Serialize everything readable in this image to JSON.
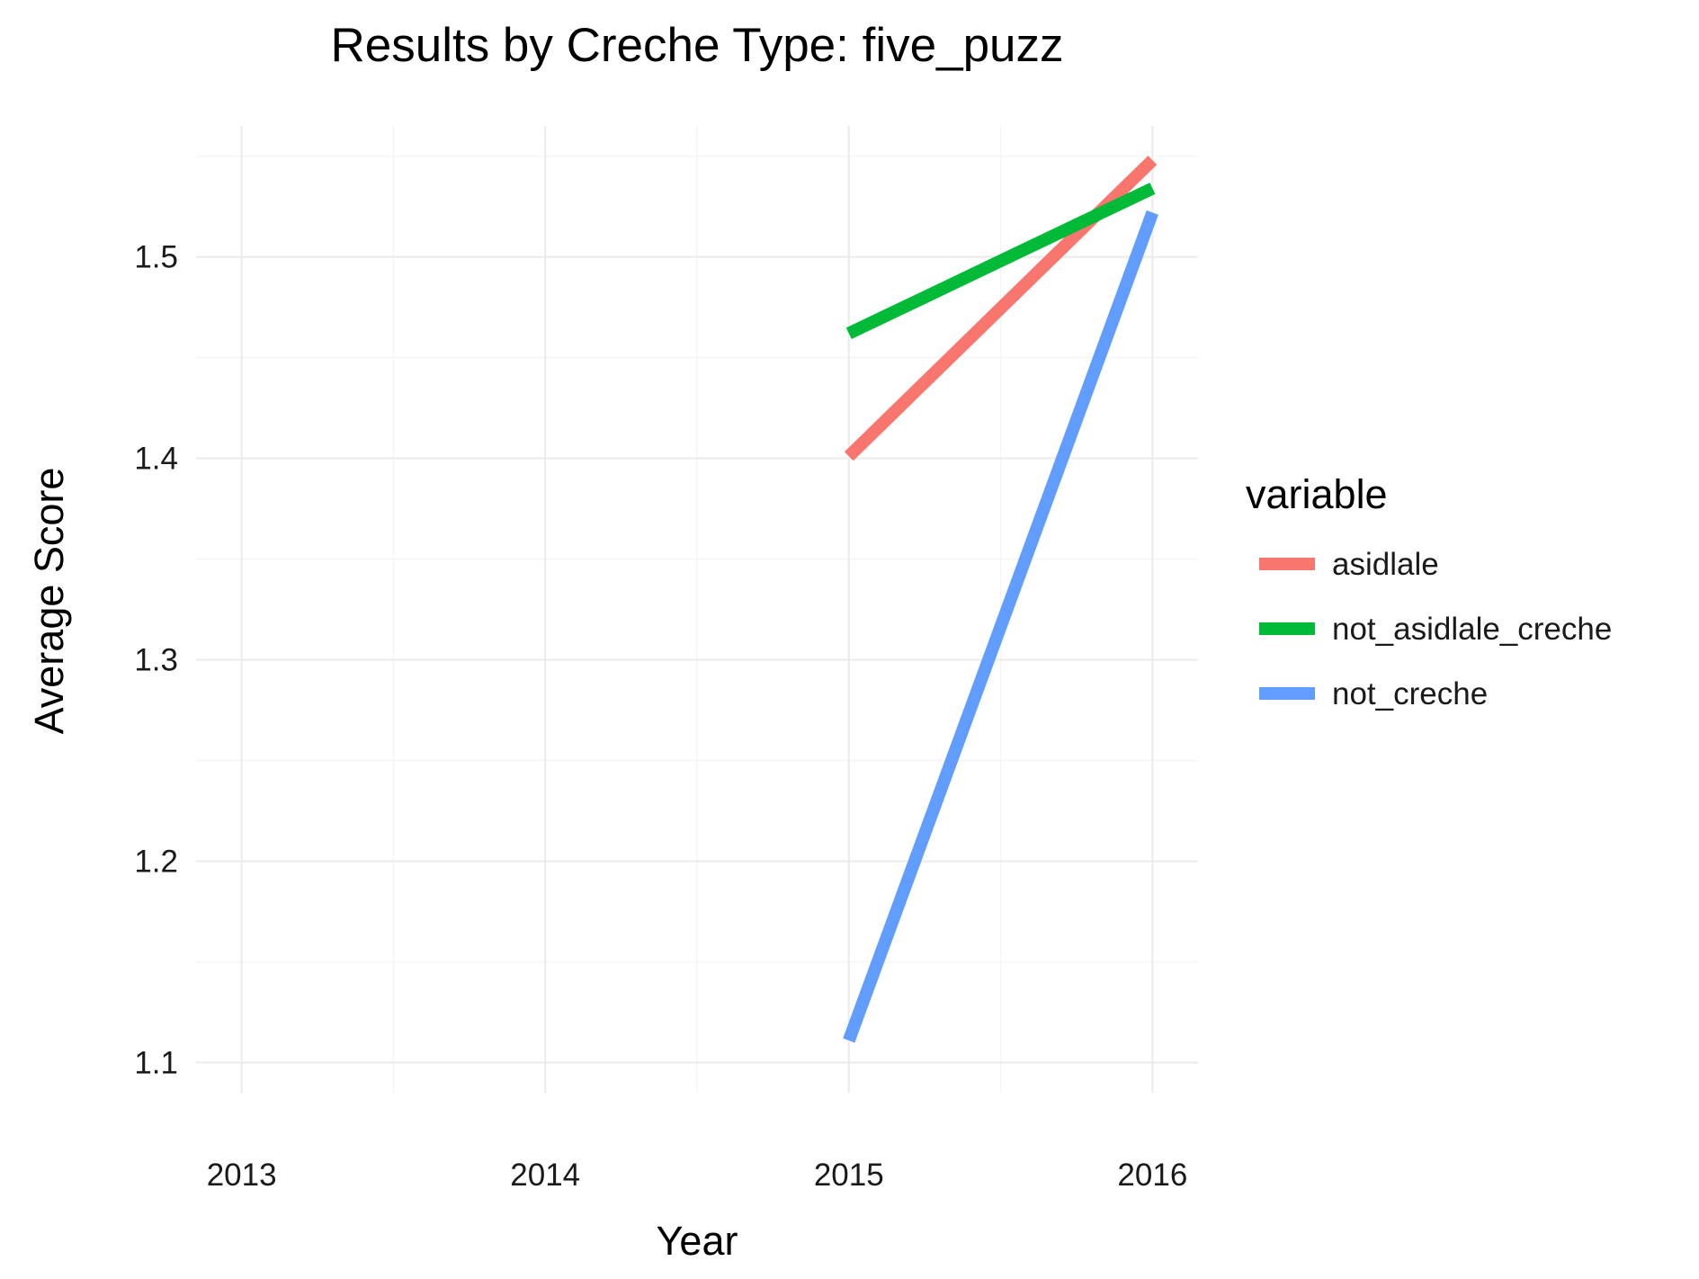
{
  "chart_data": {
    "type": "line",
    "title": "Results by Creche Type: five_puzz",
    "xlabel": "Year",
    "ylabel": "Average Score",
    "x_ticks": [
      "2013",
      "2014",
      "2015",
      "2016"
    ],
    "y_ticks": [
      "1.1",
      "1.2",
      "1.3",
      "1.4",
      "1.5"
    ],
    "xlim": [
      2012.85,
      2016.15
    ],
    "ylim": [
      1.085,
      1.565
    ],
    "grid": true,
    "legend": {
      "title": "variable",
      "position": "right"
    },
    "series": [
      {
        "name": "asidlale",
        "color": "#F8766D",
        "x": [
          2015,
          2016
        ],
        "y": [
          1.401,
          1.548
        ]
      },
      {
        "name": "not_asidlale_creche",
        "color": "#00BA38",
        "x": [
          2015,
          2016
        ],
        "y": [
          1.462,
          1.534
        ]
      },
      {
        "name": "not_creche",
        "color": "#619CFF",
        "x": [
          2015,
          2016
        ],
        "y": [
          1.111,
          1.522
        ]
      }
    ]
  }
}
